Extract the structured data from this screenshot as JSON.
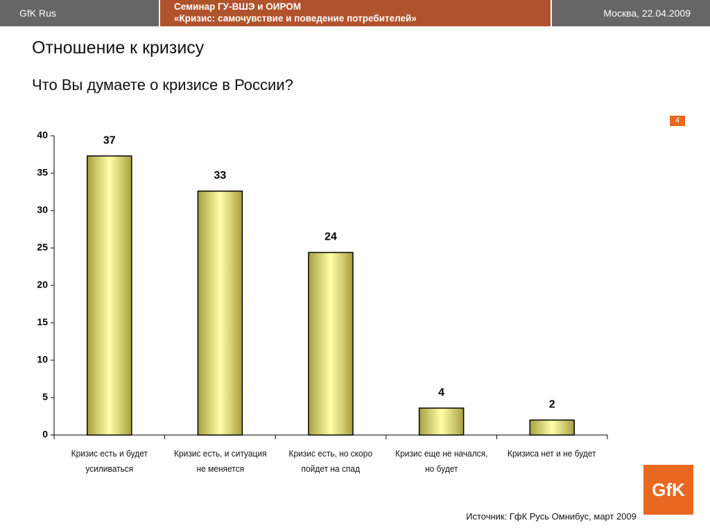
{
  "header": {
    "left": "GfK Rus",
    "center_line1": "Семинар ГУ-ВШЭ и ОИРОМ",
    "center_line2": "«Кризис: самочувствие и поведение потребителей»",
    "right": "Москва, 22.04.2009"
  },
  "title": "Отношение к кризису",
  "subtitle": "Что Вы думаете о кризисе в России?",
  "page_number": 4,
  "source": "Источник: ГфК Русь Омнибус, март 2009",
  "logo": "GfK",
  "chart_data": {
    "type": "bar",
    "categories": [
      "Кризис есть и будет усиливаться",
      "Кризис есть, и ситуация не меняется",
      "Кризис есть, но скоро пойдет на спад",
      "Кризис еще не начался, но будет",
      "Кризиса нет и не будет"
    ],
    "values": [
      37.3,
      32.6,
      24.4,
      3.6,
      2.0
    ],
    "value_labels": [
      "37",
      "33",
      "24",
      "4",
      "2"
    ],
    "color": "#ffffa8",
    "ylim": [
      0,
      40
    ],
    "yticks": [
      0,
      5,
      10,
      15,
      20,
      25,
      30,
      35,
      40
    ]
  }
}
